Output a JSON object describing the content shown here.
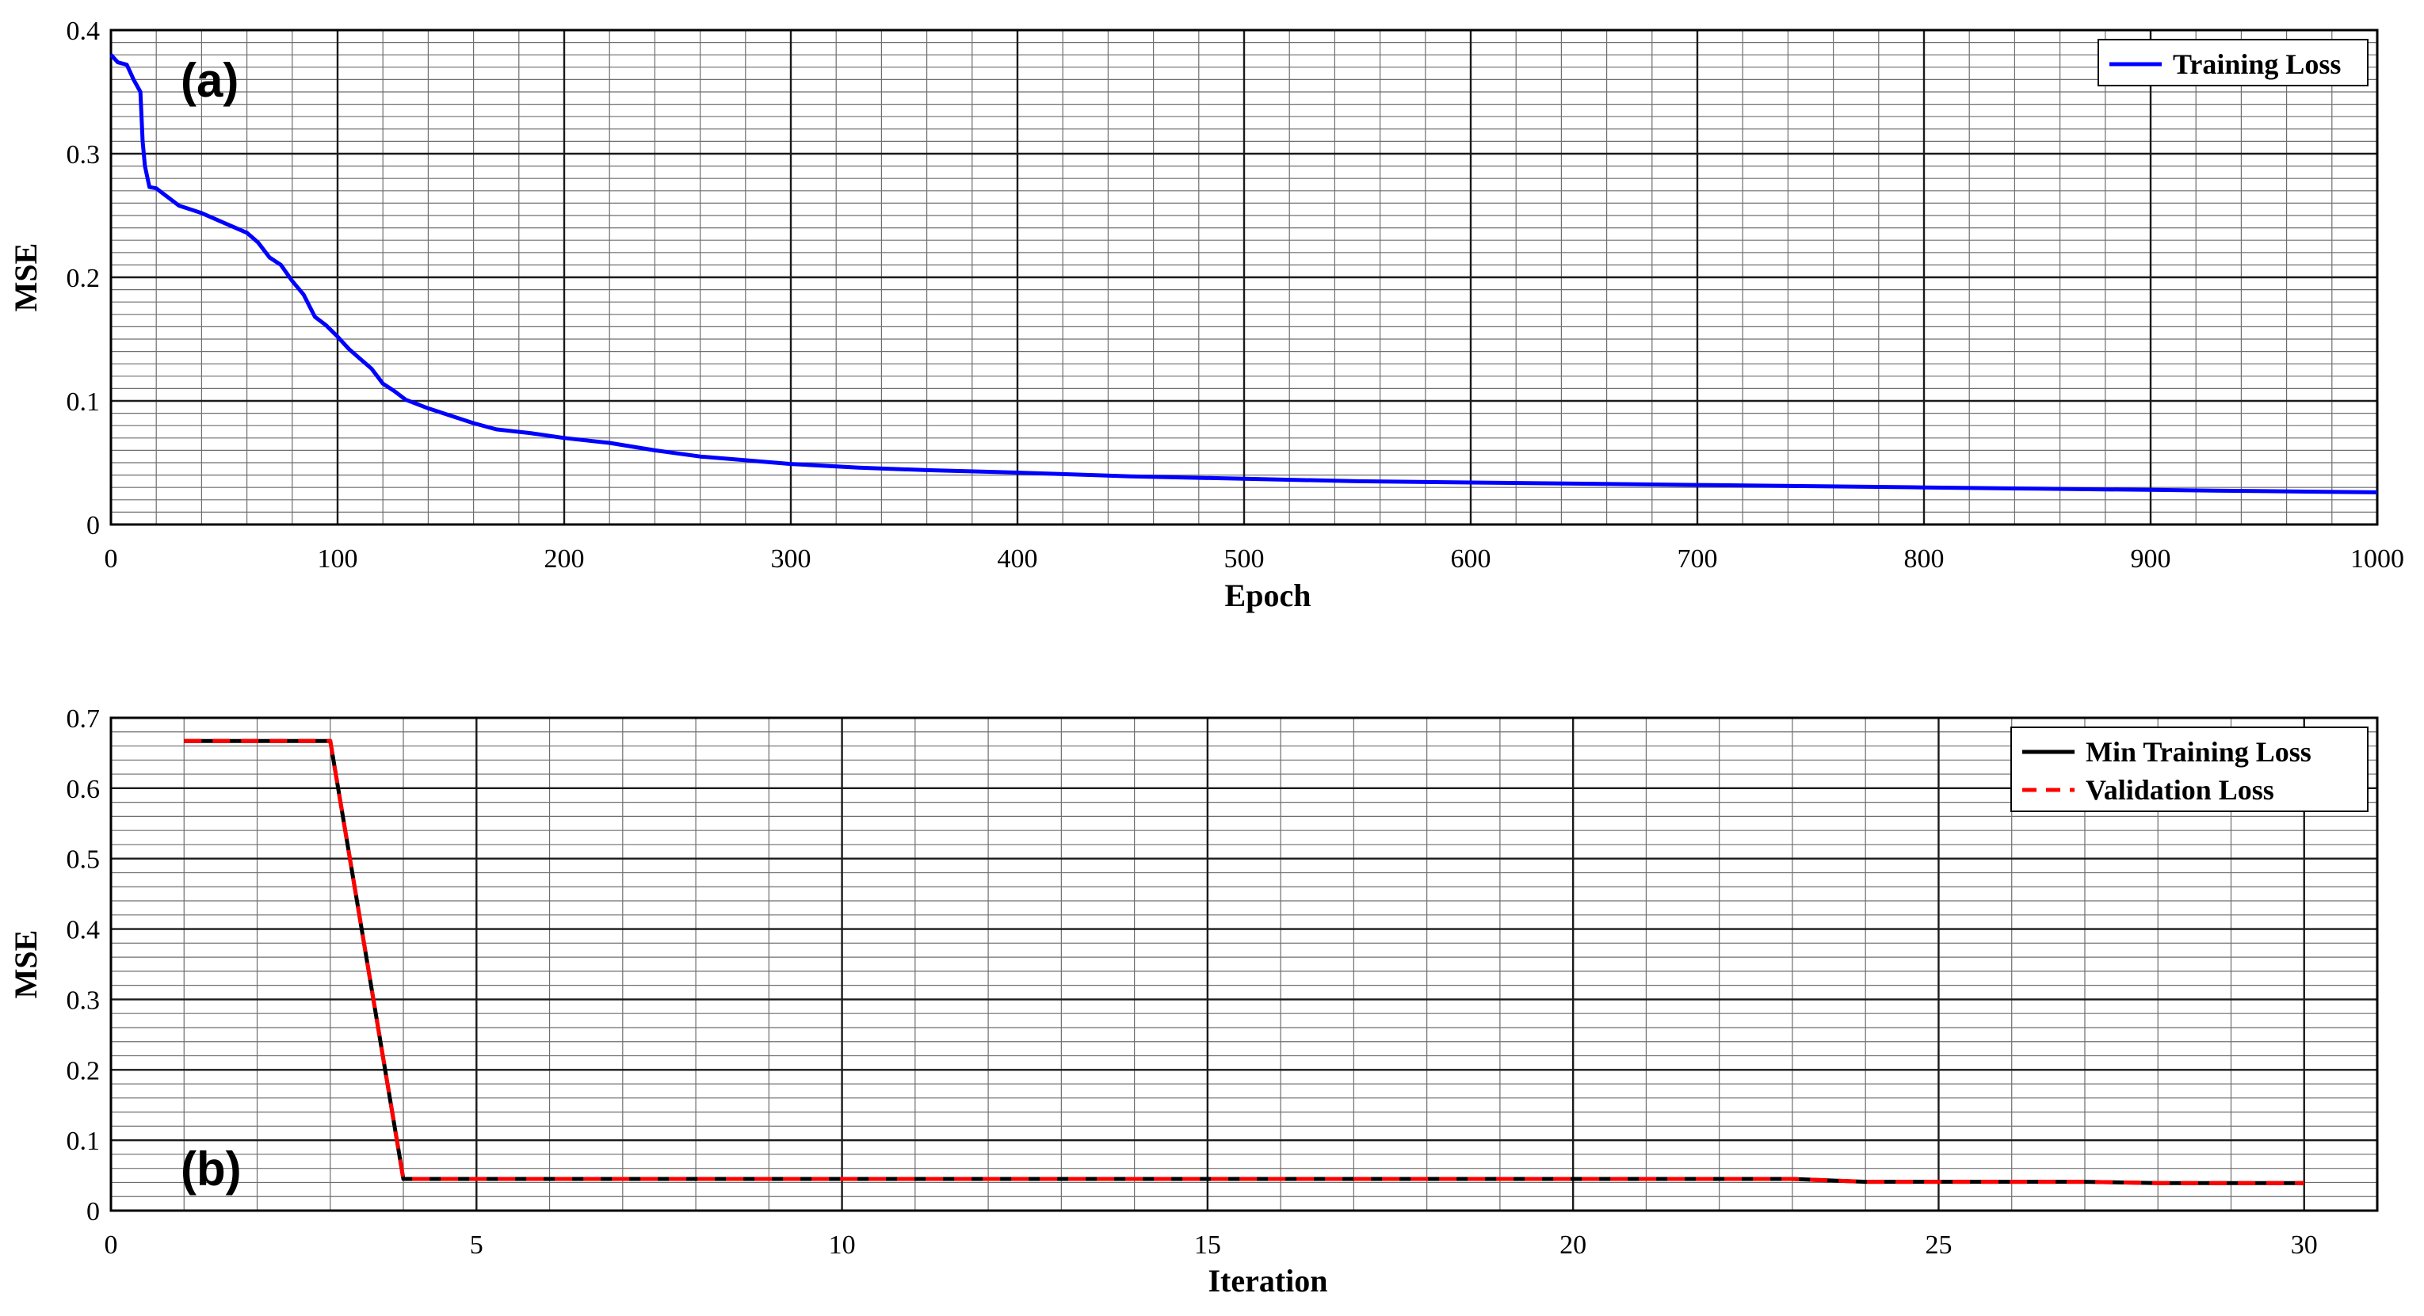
{
  "chart_data": [
    {
      "type": "line",
      "panel_label": "(a)",
      "xlabel": "Epoch",
      "ylabel": "MSE",
      "xlim": [
        0,
        1000
      ],
      "ylim": [
        0,
        0.4
      ],
      "xticks": [
        0,
        100,
        200,
        300,
        400,
        500,
        600,
        700,
        800,
        900,
        1000
      ],
      "yticks": [
        0,
        0.1,
        0.2,
        0.3,
        0.4
      ],
      "grid": true,
      "minor_grid": true,
      "legend_position": "top-right",
      "series": [
        {
          "name": "Training Loss",
          "color": "#0000ff",
          "style": "solid",
          "x": [
            0,
            3,
            7,
            10,
            13,
            14,
            15,
            17,
            20,
            25,
            30,
            40,
            50,
            60,
            65,
            70,
            75,
            80,
            85,
            90,
            95,
            100,
            105,
            110,
            115,
            120,
            125,
            130,
            140,
            150,
            160,
            170,
            185,
            200,
            220,
            240,
            260,
            280,
            300,
            330,
            360,
            400,
            450,
            500,
            550,
            600,
            650,
            700,
            750,
            800,
            850,
            900,
            950,
            1000
          ],
          "y": [
            0.38,
            0.374,
            0.372,
            0.36,
            0.35,
            0.31,
            0.29,
            0.273,
            0.272,
            0.265,
            0.258,
            0.252,
            0.244,
            0.236,
            0.228,
            0.216,
            0.21,
            0.197,
            0.186,
            0.168,
            0.161,
            0.152,
            0.142,
            0.134,
            0.126,
            0.114,
            0.108,
            0.101,
            0.094,
            0.088,
            0.082,
            0.077,
            0.074,
            0.07,
            0.066,
            0.06,
            0.055,
            0.052,
            0.049,
            0.046,
            0.044,
            0.042,
            0.039,
            0.037,
            0.035,
            0.034,
            0.033,
            0.032,
            0.031,
            0.03,
            0.029,
            0.028,
            0.027,
            0.026
          ]
        }
      ]
    },
    {
      "type": "line",
      "panel_label": "(b)",
      "xlabel": "Iteration",
      "ylabel": "MSE",
      "xlim": [
        0,
        31
      ],
      "ylim": [
        0,
        0.7
      ],
      "xticks": [
        0,
        5,
        10,
        15,
        20,
        25,
        30
      ],
      "yticks": [
        0,
        0.1,
        0.2,
        0.3,
        0.4,
        0.5,
        0.6,
        0.7
      ],
      "grid": true,
      "minor_grid": true,
      "legend_position": "top-right",
      "series": [
        {
          "name": "Min Training Loss",
          "color": "#000000",
          "style": "solid",
          "x": [
            1,
            2,
            3,
            4,
            5,
            6,
            7,
            8,
            9,
            10,
            11,
            12,
            13,
            14,
            15,
            16,
            17,
            18,
            19,
            20,
            21,
            22,
            23,
            24,
            25,
            26,
            27,
            28,
            29,
            30
          ],
          "y": [
            0.667,
            0.667,
            0.667,
            0.045,
            0.045,
            0.045,
            0.045,
            0.045,
            0.045,
            0.045,
            0.045,
            0.045,
            0.045,
            0.045,
            0.045,
            0.045,
            0.045,
            0.045,
            0.045,
            0.045,
            0.045,
            0.045,
            0.045,
            0.041,
            0.041,
            0.041,
            0.041,
            0.039,
            0.039,
            0.039
          ]
        },
        {
          "name": "Validation Loss",
          "color": "#ff0000",
          "style": "dashed",
          "x": [
            1,
            2,
            3,
            4,
            5,
            6,
            7,
            8,
            9,
            10,
            11,
            12,
            13,
            14,
            15,
            16,
            17,
            18,
            19,
            20,
            21,
            22,
            23,
            24,
            25,
            26,
            27,
            28,
            29,
            30
          ],
          "y": [
            0.667,
            0.667,
            0.667,
            0.045,
            0.045,
            0.045,
            0.045,
            0.045,
            0.045,
            0.045,
            0.045,
            0.045,
            0.045,
            0.045,
            0.045,
            0.045,
            0.045,
            0.045,
            0.045,
            0.045,
            0.045,
            0.045,
            0.045,
            0.041,
            0.041,
            0.041,
            0.041,
            0.039,
            0.039,
            0.039
          ]
        }
      ]
    }
  ]
}
